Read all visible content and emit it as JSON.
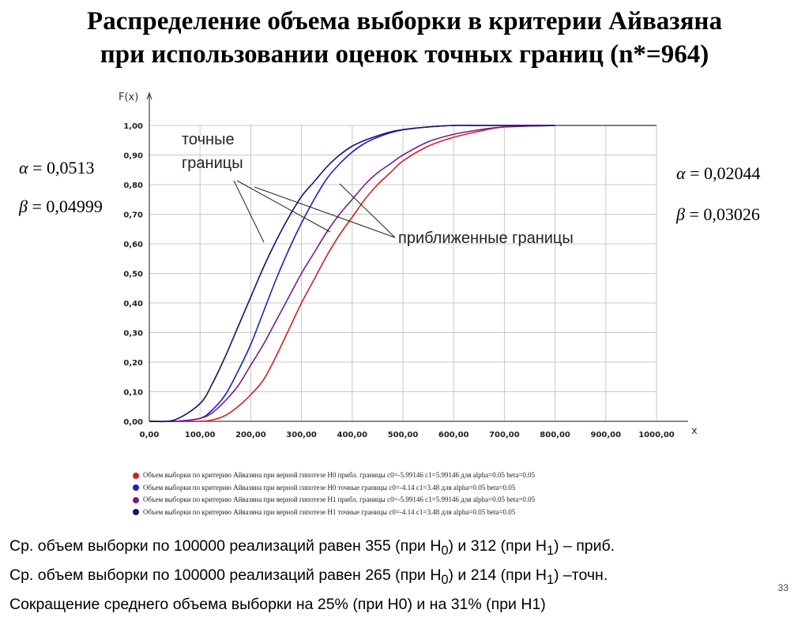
{
  "title": {
    "line1": "Распределение объема выборки в критерии Айвазяна",
    "line2": "при использовании оценок точных границ (n*=964)"
  },
  "chart_data": {
    "type": "line",
    "ylabel": "F(x)",
    "xlabel": "x",
    "xlim": [
      0,
      1000
    ],
    "ylim": [
      0,
      1
    ],
    "grid": true,
    "x_ticks": [
      "0,00",
      "100,00",
      "200,00",
      "300,00",
      "400,00",
      "500,00",
      "600,00",
      "700,00",
      "800,00",
      "900,00",
      "1000,00"
    ],
    "y_ticks": [
      "0,00",
      "0,10",
      "0,20",
      "0,30",
      "0,40",
      "0,50",
      "0,60",
      "0,70",
      "0,80",
      "0,90",
      "1,00"
    ],
    "x": [
      0,
      50,
      100,
      125,
      150,
      175,
      200,
      225,
      250,
      275,
      300,
      325,
      350,
      375,
      400,
      425,
      450,
      475,
      500,
      550,
      600,
      650,
      700,
      800
    ],
    "series": [
      {
        "name": "Объем выборки по критерию Айвазяна при верной гипотезе H0  прибл. границы  c0=-5.99146 c1=5.99146 для  alpha=0.05 beta=0.05",
        "color": "#d42020",
        "values": [
          0,
          0,
          0,
          0.005,
          0.02,
          0.05,
          0.09,
          0.14,
          0.22,
          0.31,
          0.4,
          0.48,
          0.56,
          0.63,
          0.69,
          0.75,
          0.8,
          0.84,
          0.88,
          0.93,
          0.96,
          0.98,
          0.995,
          1.0
        ]
      },
      {
        "name": "Объем выборки по критерию Айвазяна при верной гипотезе H0  точные границы  c0=-4.14 c1=3.48 для  alpha=0.05 beta=0.05",
        "color": "#2020c8",
        "values": [
          0,
          0,
          0.01,
          0.04,
          0.09,
          0.17,
          0.26,
          0.37,
          0.48,
          0.58,
          0.67,
          0.75,
          0.82,
          0.87,
          0.91,
          0.94,
          0.96,
          0.975,
          0.985,
          0.995,
          1.0,
          1.0,
          1.0,
          1.0
        ]
      },
      {
        "name": "Объем выборки по критерию Айвазяна при верной гипотезе H1  прибл. границы  c0=-5.99146 c1=5.99146 для  alpha=0.05 beta=0.05",
        "color": "#7a1a8c",
        "values": [
          0,
          0,
          0.01,
          0.03,
          0.07,
          0.12,
          0.19,
          0.26,
          0.34,
          0.42,
          0.5,
          0.57,
          0.64,
          0.7,
          0.75,
          0.8,
          0.84,
          0.87,
          0.9,
          0.945,
          0.97,
          0.985,
          0.995,
          1.0
        ]
      },
      {
        "name": "Объем выборки по критерию Айвазяна при верной гипотезе H1  точные границы  c0=-4.14 c1=3.48 для  alpha=0.05 beta=0.05",
        "color": "#141470",
        "values": [
          0,
          0.005,
          0.06,
          0.13,
          0.22,
          0.32,
          0.42,
          0.52,
          0.61,
          0.69,
          0.76,
          0.81,
          0.86,
          0.9,
          0.93,
          0.95,
          0.965,
          0.978,
          0.986,
          0.995,
          1.0,
          1.0,
          1.0,
          1.0
        ]
      }
    ]
  },
  "annotations": {
    "exact_bounds_line1": "точные",
    "exact_bounds_line2": "границы",
    "approx_bounds": "приближенные границы"
  },
  "params_left": {
    "alpha_sym": "α",
    "alpha_val": " = 0,0513",
    "beta_sym": "β",
    "beta_val": " = 0,04999"
  },
  "params_right": {
    "alpha_sym": "α",
    "alpha_val": " = 0,02044",
    "beta_sym": "β",
    "beta_val": " = 0,03026"
  },
  "stats": {
    "line1_a": "Ср. объем выборки по 100000 реализаций равен 355 (при H",
    "line1_b": "0",
    "line1_c": ") и 312 (при H",
    "line1_d": "1",
    "line1_e": ") – приб.",
    "line2_a": "Ср. объем выборки по 100000 реализаций равен 265 (при H",
    "line2_b": "0",
    "line2_c": ") и 214 (при H",
    "line2_d": "1",
    "line2_e": ") –точн.",
    "line3": "Сокращение среднего объема выборки на 25% (при H0) и на 31% (при H1)"
  },
  "slide_number": "33"
}
